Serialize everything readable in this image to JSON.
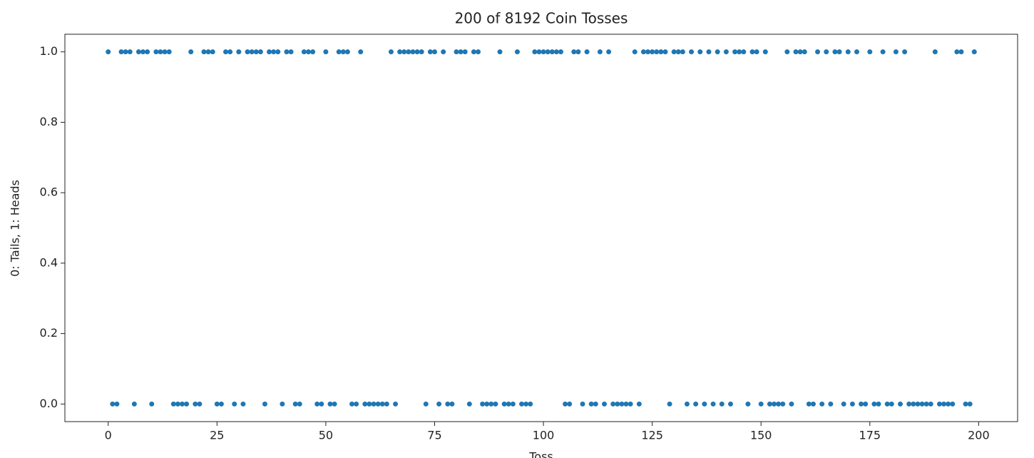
{
  "chart_data": {
    "type": "scatter",
    "title": "200 of 8192 Coin Tosses",
    "xlabel": "Toss",
    "ylabel": "0: Tails, 1: Heads",
    "color": "#1f77b4",
    "xlim": [
      -9.95,
      208.95
    ],
    "ylim": [
      -0.05,
      1.05
    ],
    "xticks": [
      0,
      25,
      50,
      75,
      100,
      125,
      150,
      175,
      200
    ],
    "yticks": [
      {
        "value": 0,
        "label": "0.0"
      },
      {
        "value": 0.2,
        "label": "0.2"
      },
      {
        "value": 0.4,
        "label": "0.4"
      },
      {
        "value": 0.6,
        "label": "0.6"
      },
      {
        "value": 0.8,
        "label": "0.8"
      },
      {
        "value": 1,
        "label": "1.0"
      }
    ],
    "x": [
      0,
      1,
      2,
      3,
      4,
      5,
      6,
      7,
      8,
      9,
      10,
      11,
      12,
      13,
      14,
      15,
      16,
      17,
      18,
      19,
      20,
      21,
      22,
      23,
      24,
      25,
      26,
      27,
      28,
      29,
      30,
      31,
      32,
      33,
      34,
      35,
      36,
      37,
      38,
      39,
      40,
      41,
      42,
      43,
      44,
      45,
      46,
      47,
      48,
      49,
      50,
      51,
      52,
      53,
      54,
      55,
      56,
      57,
      58,
      59,
      60,
      61,
      62,
      63,
      64,
      65,
      66,
      67,
      68,
      69,
      70,
      71,
      72,
      73,
      74,
      75,
      76,
      77,
      78,
      79,
      80,
      81,
      82,
      83,
      84,
      85,
      86,
      87,
      88,
      89,
      90,
      91,
      92,
      93,
      94,
      95,
      96,
      97,
      98,
      99,
      100,
      101,
      102,
      103,
      104,
      105,
      106,
      107,
      108,
      109,
      110,
      111,
      112,
      113,
      114,
      115,
      116,
      117,
      118,
      119,
      120,
      121,
      122,
      123,
      124,
      125,
      126,
      127,
      128,
      129,
      130,
      131,
      132,
      133,
      134,
      135,
      136,
      137,
      138,
      139,
      140,
      141,
      142,
      143,
      144,
      145,
      146,
      147,
      148,
      149,
      150,
      151,
      152,
      153,
      154,
      155,
      156,
      157,
      158,
      159,
      160,
      161,
      162,
      163,
      164,
      165,
      166,
      167,
      168,
      169,
      170,
      171,
      172,
      173,
      174,
      175,
      176,
      177,
      178,
      179,
      180,
      181,
      182,
      183,
      184,
      185,
      186,
      187,
      188,
      189,
      190,
      191,
      192,
      193,
      194,
      195,
      196,
      197,
      198,
      199
    ],
    "values": [
      1,
      0,
      0,
      1,
      1,
      1,
      0,
      1,
      1,
      1,
      0,
      1,
      1,
      1,
      1,
      0,
      0,
      0,
      0,
      1,
      0,
      0,
      1,
      1,
      1,
      0,
      0,
      1,
      1,
      0,
      1,
      0,
      1,
      1,
      1,
      1,
      0,
      1,
      1,
      1,
      0,
      1,
      1,
      0,
      0,
      1,
      1,
      1,
      0,
      0,
      1,
      0,
      0,
      1,
      1,
      1,
      0,
      0,
      1,
      0,
      0,
      0,
      0,
      0,
      0,
      1,
      0,
      1,
      1,
      1,
      1,
      1,
      1,
      0,
      1,
      1,
      0,
      1,
      0,
      0,
      1,
      1,
      1,
      0,
      1,
      1,
      0,
      0,
      0,
      0,
      1,
      0,
      0,
      0,
      1,
      0,
      0,
      0,
      1,
      1,
      1,
      1,
      1,
      1,
      1,
      0,
      0,
      1,
      1,
      0,
      1,
      0,
      0,
      1,
      0,
      1,
      0,
      0,
      0,
      0,
      0,
      1,
      0,
      1,
      1,
      1,
      1,
      1,
      1,
      0,
      1,
      1,
      1,
      0,
      1,
      0,
      1,
      0,
      1,
      0,
      1,
      0,
      1,
      0,
      1,
      1,
      1,
      0,
      1,
      1,
      0,
      1,
      0,
      0,
      0,
      0,
      1,
      0,
      1,
      1,
      1,
      0,
      0,
      1,
      0,
      1,
      0,
      1,
      1,
      0,
      1,
      0,
      1,
      0,
      0,
      1,
      0,
      0,
      1,
      0,
      0,
      1,
      0,
      1,
      0,
      0,
      0,
      0,
      0,
      0,
      1,
      0,
      0,
      0,
      0,
      1,
      1,
      0,
      0,
      1
    ]
  }
}
